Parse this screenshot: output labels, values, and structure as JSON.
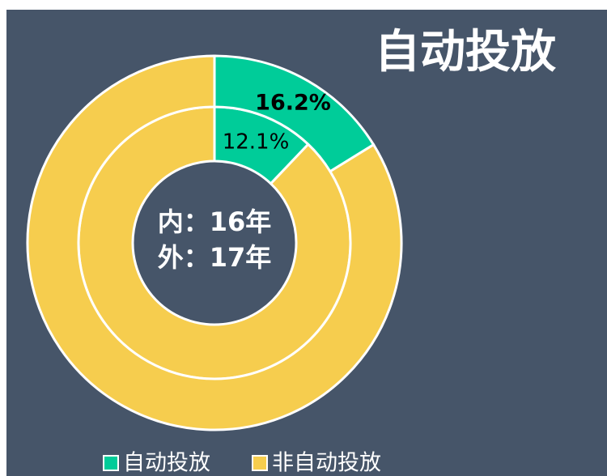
{
  "chart_data": {
    "type": "donut",
    "title": "自动投放",
    "annotations": [
      "内：16年",
      "外：17年"
    ],
    "series": [
      {
        "name": "自动投放",
        "color": "#00cc99"
      },
      {
        "name": "非自动投放",
        "color": "#f6cd4e"
      }
    ],
    "rings": [
      {
        "values": [
          12.1,
          87.9
        ],
        "value_labels": [
          "12.1%",
          null
        ]
      },
      {
        "values": [
          16.2,
          83.8
        ],
        "value_labels": [
          "16.2%",
          null
        ]
      }
    ]
  }
}
